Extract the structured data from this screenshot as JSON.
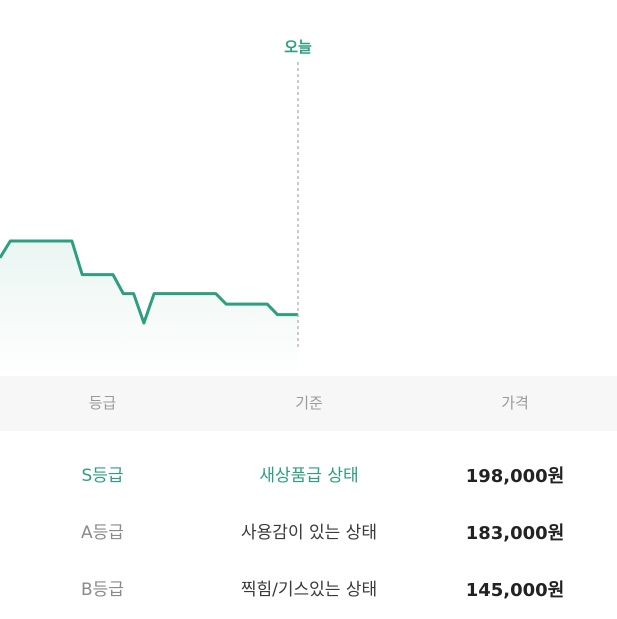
{
  "chart": {
    "today_label": "오늘",
    "accent_color": "#2e9e80",
    "line_points": [
      180,
      188,
      188,
      188,
      188,
      188,
      188,
      188,
      172,
      172,
      172,
      172,
      163,
      163,
      149,
      163,
      163,
      163,
      163,
      163,
      163,
      163,
      158,
      158,
      158,
      158,
      158,
      153,
      153,
      153
    ]
  },
  "table": {
    "headers": [
      "등급",
      "기준",
      "가격"
    ],
    "rows": [
      {
        "grade": "S등급",
        "state": "새상품급 상태",
        "price": "198,000원",
        "highlight": true
      },
      {
        "grade": "A등급",
        "state": "사용감이 있는 상태",
        "price": "183,000원",
        "highlight": false
      },
      {
        "grade": "B등급",
        "state": "찍힘/기스있는 상태",
        "price": "145,000원",
        "highlight": false
      }
    ]
  }
}
